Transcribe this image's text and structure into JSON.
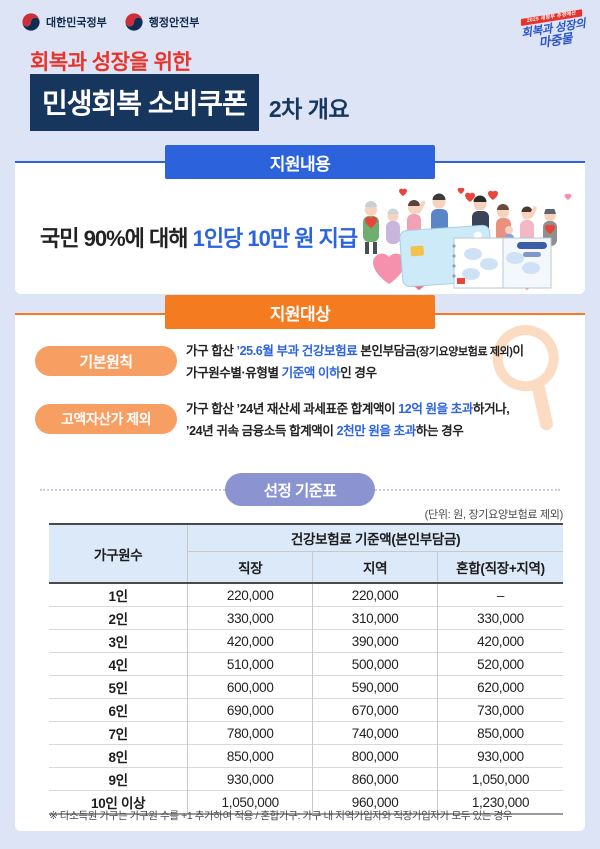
{
  "colors": {
    "bg": "#dde4f5",
    "navy": "#16365e",
    "red": "#e8332a",
    "blue": "#2d62dd",
    "text_blue": "#2c63e0",
    "orange": "#f47b20",
    "pill_orange": "#f79e63",
    "periwinkle": "#8b93d0",
    "table_header_bg": "#dce9f8"
  },
  "header": {
    "gov_logos": [
      {
        "label": "대한민국정부"
      },
      {
        "label": "행정안전부"
      }
    ],
    "stamp": {
      "ribbon": "2025 새정부 추경예산",
      "line1": "회복과 성장의",
      "line2": "마중물"
    },
    "subtitle": "회복과 성장을 위한",
    "title": "민생회복 소비쿠폰",
    "title_suffix": "2차 개요"
  },
  "support_content": {
    "section_title": "지원내용",
    "text_dark": "국민 90%에 대해 ",
    "text_highlight": "1인당 10만 원 지급",
    "illustration": "people-with-hearts-card-and-voucher-booklet"
  },
  "support_target": {
    "section_title": "지원대상",
    "watermark": "magnifier-icon",
    "items": [
      {
        "pill": "기본원칙",
        "segments": [
          {
            "t": "가구 합산 ",
            "c": "dark"
          },
          {
            "t": "’25.6월 부과 건강보험료",
            "c": "blue"
          },
          {
            "t": " 본인부담금",
            "c": "dark"
          },
          {
            "t": "(장기요양보험료 제외)",
            "c": "small"
          },
          {
            "t": "이",
            "c": "dark"
          },
          {
            "br": true
          },
          {
            "t": "가구원수별·유형별 ",
            "c": "dark"
          },
          {
            "t": "기준액 이하",
            "c": "blue"
          },
          {
            "t": "인 경우",
            "c": "dark"
          }
        ]
      },
      {
        "pill": "고액자산가 제외",
        "segments": [
          {
            "t": "가구 합산 ’24년 재산세 과세표준 합계액이 ",
            "c": "dark"
          },
          {
            "t": "12억 원을 초과",
            "c": "blue"
          },
          {
            "t": "하거나,",
            "c": "dark"
          },
          {
            "br": true
          },
          {
            "t": "’24년 귀속 금융소득 합계액이 ",
            "c": "dark"
          },
          {
            "t": "2천만 원을 초과",
            "c": "blue"
          },
          {
            "t": "하는 경우",
            "c": "dark"
          }
        ]
      }
    ]
  },
  "criteria": {
    "pill": "선정 기준표",
    "unit_note": "(단위: 원, 장기요양보험료 제외)",
    "table": {
      "col1_header": "가구원수",
      "group_header": "건강보험료 기준액(본인부담금)",
      "sub_headers": [
        "직장",
        "지역",
        "혼합(직장+지역)"
      ],
      "rows": [
        {
          "label": "1인",
          "values": [
            "220,000",
            "220,000",
            "–"
          ]
        },
        {
          "label": "2인",
          "values": [
            "330,000",
            "310,000",
            "330,000"
          ]
        },
        {
          "label": "3인",
          "values": [
            "420,000",
            "390,000",
            "420,000"
          ]
        },
        {
          "label": "4인",
          "values": [
            "510,000",
            "500,000",
            "520,000"
          ]
        },
        {
          "label": "5인",
          "values": [
            "600,000",
            "590,000",
            "620,000"
          ]
        },
        {
          "label": "6인",
          "values": [
            "690,000",
            "670,000",
            "730,000"
          ]
        },
        {
          "label": "7인",
          "values": [
            "780,000",
            "740,000",
            "850,000"
          ]
        },
        {
          "label": "8인",
          "values": [
            "850,000",
            "800,000",
            "930,000"
          ]
        },
        {
          "label": "9인",
          "values": [
            "930,000",
            "860,000",
            "1,050,000"
          ]
        },
        {
          "label": "10인 이상",
          "values": [
            "1,050,000",
            "960,000",
            "1,230,000"
          ]
        }
      ]
    },
    "footnote": "※ 다소득원 가구는 가구원 수를 +1 추가하여 적용 / 혼합가구: 가구 내 지역가입자와 직장가입자가 모두 있는 경우"
  }
}
